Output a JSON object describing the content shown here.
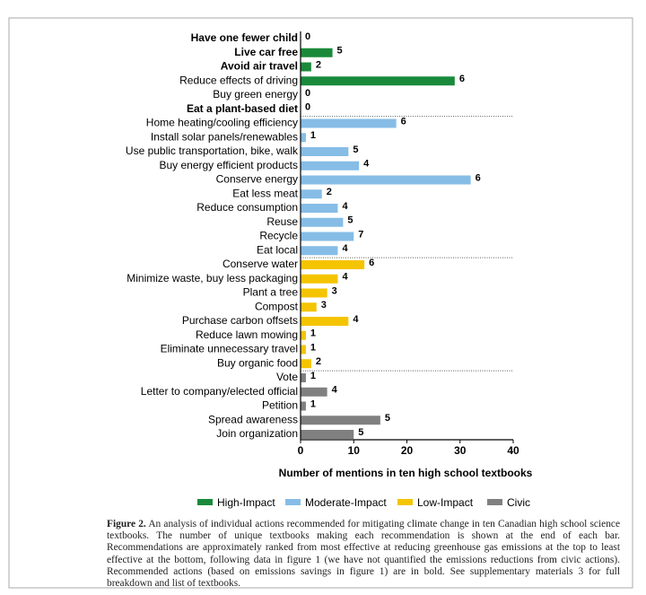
{
  "chart_data": {
    "type": "hbar",
    "x_label": "Number of mentions in ten high school textbooks",
    "xlim": [
      0,
      40
    ],
    "xticks": [
      0,
      10,
      20,
      30,
      40
    ],
    "groups": [
      {
        "name": "High-Impact",
        "color": "#1a8a3a"
      },
      {
        "name": "Moderate-Impact",
        "color": "#86bde6"
      },
      {
        "name": "Low-Impact",
        "color": "#f5c400"
      },
      {
        "name": "Civic",
        "color": "#808080"
      }
    ],
    "categories": [
      "Have one fewer child",
      "Live car free",
      "Avoid air travel",
      "Reduce effects of driving",
      "Buy green energy",
      "Eat a plant-based diet",
      "Home heating/cooling efficiency",
      "Install solar panels/renewables",
      "Use public transportation, bike, walk",
      "Buy energy efficient products",
      "Conserve energy",
      "Eat less meat",
      "Reduce consumption",
      "Reuse",
      "Recycle",
      "Eat local",
      "Conserve water",
      "Minimize waste, buy less packaging",
      "Plant a tree",
      "Compost",
      "Purchase carbon offsets",
      "Reduce lawn mowing",
      "Eliminate unnecessary travel",
      "Buy organic food",
      "Vote",
      "Letter to company/elected official",
      "Petition",
      "Spread awareness",
      "Join organization"
    ],
    "group": [
      0,
      0,
      0,
      0,
      0,
      0,
      1,
      1,
      1,
      1,
      1,
      1,
      1,
      1,
      1,
      1,
      2,
      2,
      2,
      2,
      2,
      2,
      2,
      2,
      3,
      3,
      3,
      3,
      3
    ],
    "bold": [
      true,
      true,
      true,
      false,
      false,
      true,
      false,
      false,
      false,
      false,
      false,
      false,
      false,
      false,
      false,
      false,
      false,
      false,
      false,
      false,
      false,
      false,
      false,
      false,
      false,
      false,
      false,
      false,
      false
    ],
    "values": [
      0,
      6,
      2,
      29,
      0,
      0,
      18,
      1,
      9,
      11,
      32,
      4,
      7,
      8,
      10,
      7,
      12,
      7,
      5,
      3,
      9,
      1,
      1,
      2,
      1,
      5,
      1,
      15,
      10
    ],
    "textbooks": [
      0,
      5,
      2,
      6,
      0,
      0,
      6,
      1,
      5,
      4,
      6,
      2,
      4,
      5,
      7,
      4,
      6,
      4,
      3,
      3,
      4,
      1,
      1,
      2,
      1,
      4,
      1,
      5,
      5
    ]
  },
  "caption_label": "Figure 2.",
  "caption": "An analysis of individual actions recommended for mitigating climate change in ten Canadian high school science textbooks. The number of unique textbooks making each recommendation is shown at the end of each bar. Recommendations are approximately ranked from most effective at reducing greenhouse gas emissions at the top to least effective at the bottom, following data in figure 1 (we have not quantified the emissions reductions from civic actions). Recommended actions (based on emissions savings in figure 1) are in bold. See supplementary materials 3 for full breakdown and list of textbooks."
}
